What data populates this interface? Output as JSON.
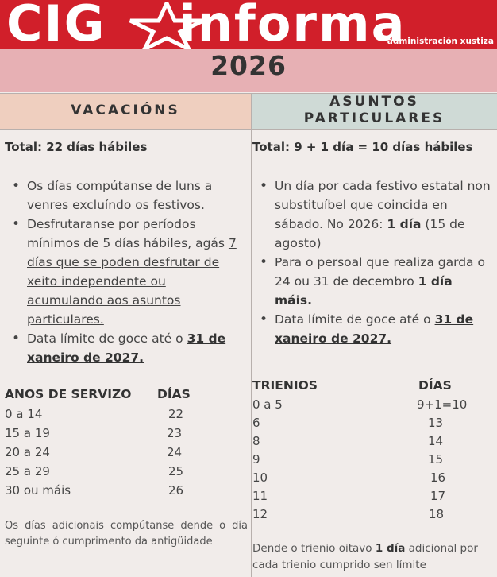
{
  "header": {
    "logo": "CIG",
    "brand": "informa",
    "subtitle": "administración xustiza",
    "year": "2026"
  },
  "vacacions": {
    "heading": "VACACIÓNS",
    "total": "Total: 22 días hábiles",
    "bullet1": "Os días compútanse de luns a venres excluíndo os festivos.",
    "bullet2_a": "Desfrutaranse por períodos mínimos de 5 días hábiles, agás ",
    "bullet2_b": "7 días que se poden desfrutar de xeito independente ou acumulando aos asuntos particulares.",
    "bullet3_a": "Data límite de goce até o ",
    "bullet3_b": "31 de xaneiro de 2027.",
    "table_head": [
      "ANOS DE SERVIZO",
      "DÍAS"
    ],
    "rows": [
      [
        "0 a 14",
        "22"
      ],
      [
        "15 a 19",
        "23"
      ],
      [
        "20 a 24",
        "24"
      ],
      [
        "25 a 29",
        "25"
      ],
      [
        "30 ou máis",
        "26"
      ]
    ],
    "note": "Os días adicionais compútanse dende o día seguinte ó cumprimento da antigüidade"
  },
  "asuntos": {
    "heading_line1": "ASUNTOS",
    "heading_line2": "PARTICULARES",
    "total": "Total: 9 + 1 día = 10 días hábiles",
    "bullet1_a": "Un día por cada festivo estatal non substituíbel que coincida en sábado. No 2026: ",
    "bullet1_b": "1 día",
    "bullet1_c": " (15 de agosto)",
    "bullet2_a": "Para o persoal que realiza garda o 24 ou 31 de decembro ",
    "bullet2_b": "1 día máis.",
    "bullet3_a": "Data límite de goce até o ",
    "bullet3_b": "31 de xaneiro de 2027.",
    "table_head": [
      "TRIENIOS",
      "DÍAS"
    ],
    "rows": [
      [
        "0 a 5",
        "9+1=10"
      ],
      [
        "6",
        "13"
      ],
      [
        "8",
        "14"
      ],
      [
        "9",
        "15"
      ],
      [
        "10",
        "16"
      ],
      [
        "11",
        "17"
      ],
      [
        "12",
        "18"
      ]
    ],
    "note_a": "Dende o trienio oitavo ",
    "note_b": "1 día",
    "note_c": " adicional por cada trienio cumprido sen límite"
  },
  "colors": {
    "brand_red": "#d11f2a",
    "year_band": "#e7b0b4",
    "vacacions_head": "#efcfbf",
    "asuntos_head": "#cfdad6"
  },
  "icons": [
    "star-icon"
  ]
}
